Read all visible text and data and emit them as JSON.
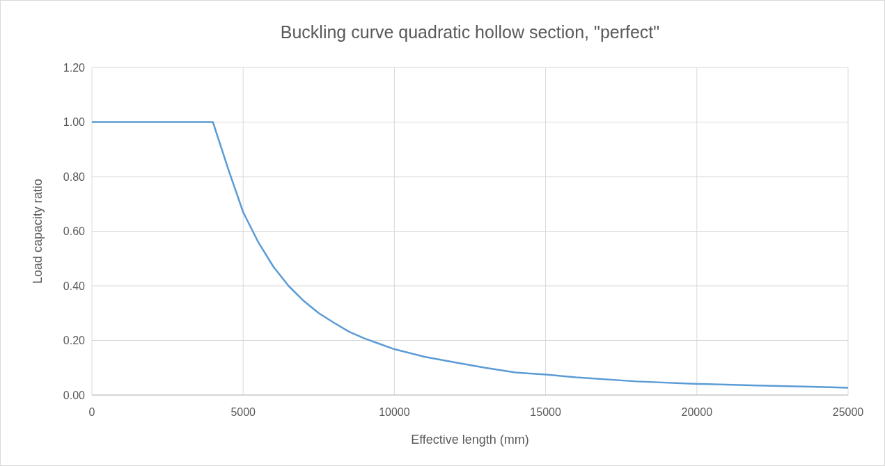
{
  "chart_data": {
    "type": "line",
    "title": "Buckling curve quadratic hollow section, \"perfect\"",
    "xlabel": "Effective length (mm)",
    "ylabel": "Load capacity ratio",
    "x": [
      0,
      4000,
      4500,
      5000,
      5500,
      6000,
      6500,
      7000,
      7500,
      8000,
      8500,
      9000,
      9500,
      10000,
      11000,
      12000,
      13000,
      14000,
      15000,
      16000,
      18000,
      20000,
      22000,
      24000,
      25000
    ],
    "series": [
      {
        "color": "#5b9bd5",
        "values": [
          1.0,
          1.0,
          0.83,
          0.67,
          0.56,
          0.47,
          0.4,
          0.345,
          0.3,
          0.265,
          0.232,
          0.208,
          0.188,
          0.168,
          0.14,
          0.12,
          0.1,
          0.083,
          0.075,
          0.065,
          0.05,
          0.041,
          0.035,
          0.03,
          0.027
        ]
      }
    ],
    "xlim": [
      0,
      25000
    ],
    "xticks": [
      0,
      5000,
      10000,
      15000,
      20000,
      25000
    ],
    "ylim": [
      0,
      1.2
    ],
    "yticks": [
      {
        "value": 0,
        "label": "0.00"
      },
      {
        "value": 0.2,
        "label": "0.20"
      },
      {
        "value": 0.4,
        "label": "0.40"
      },
      {
        "value": 0.6,
        "label": "0.60"
      },
      {
        "value": 0.8,
        "label": "0.80"
      },
      {
        "value": 1.0,
        "label": "1.00"
      },
      {
        "value": 1.2,
        "label": "1.20"
      }
    ],
    "grid": true,
    "marker": "none",
    "line_style": "solid"
  }
}
